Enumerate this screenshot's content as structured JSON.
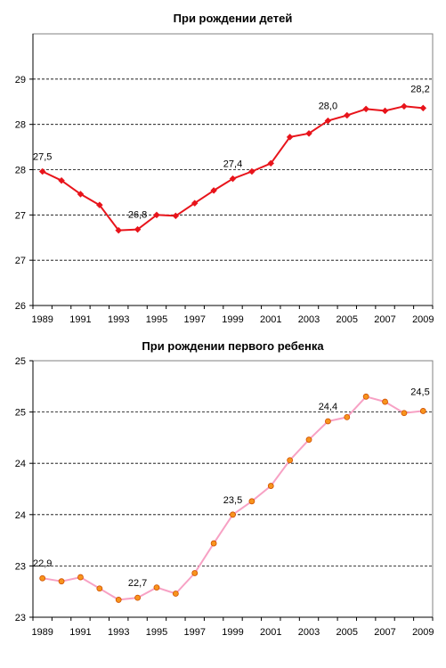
{
  "chart_data": [
    {
      "type": "line",
      "title": "При рождении детей",
      "x": [
        1989,
        1990,
        1991,
        1992,
        1993,
        1994,
        1995,
        1996,
        1997,
        1998,
        1999,
        2000,
        2001,
        2002,
        2003,
        2004,
        2005,
        2006,
        2007,
        2008,
        2009
      ],
      "series": [
        {
          "values": [
            27.48,
            27.38,
            27.23,
            27.11,
            26.83,
            26.84,
            27.0,
            26.99,
            27.13,
            27.27,
            27.4,
            27.48,
            27.57,
            27.86,
            27.9,
            28.04,
            28.1,
            28.17,
            28.15,
            28.2,
            28.18
          ]
        }
      ],
      "ylim": [
        26.0,
        29.0
      ],
      "y_ticks": [
        {
          "value": 26.0,
          "label": "26"
        },
        {
          "value": 26.5,
          "label": "27"
        },
        {
          "value": 27.0,
          "label": "27"
        },
        {
          "value": 27.5,
          "label": "28"
        },
        {
          "value": 28.0,
          "label": "28"
        },
        {
          "value": 28.5,
          "label": "29"
        }
      ],
      "x_tick_labels": [
        "1989",
        "1991",
        "1993",
        "1995",
        "1997",
        "1999",
        "2001",
        "2003",
        "2005",
        "2007",
        "2009"
      ],
      "data_labels": [
        {
          "year": 1989,
          "text": "27,5"
        },
        {
          "year": 1994,
          "text": "26,8"
        },
        {
          "year": 1999,
          "text": "27,4"
        },
        {
          "year": 2004,
          "text": "28,0"
        },
        {
          "year": 2009,
          "text": "28,2"
        }
      ],
      "line_color": "#e8141b",
      "marker": "diamond",
      "marker_color": "#e8141b",
      "grid": "horizontal dashed"
    },
    {
      "type": "line",
      "title": "При рождении первого ребенка",
      "x": [
        1989,
        1990,
        1991,
        1992,
        1993,
        1994,
        1995,
        1996,
        1997,
        1998,
        1999,
        2000,
        2001,
        2002,
        2003,
        2004,
        2005,
        2006,
        2007,
        2008,
        2009
      ],
      "series": [
        {
          "values": [
            22.88,
            22.85,
            22.89,
            22.78,
            22.67,
            22.69,
            22.79,
            22.73,
            22.93,
            23.22,
            23.5,
            23.63,
            23.78,
            24.03,
            24.23,
            24.41,
            24.45,
            24.65,
            24.6,
            24.49,
            24.51
          ]
        }
      ],
      "ylim": [
        22.5,
        25.0
      ],
      "y_ticks": [
        {
          "value": 22.5,
          "label": "23"
        },
        {
          "value": 23.0,
          "label": "23"
        },
        {
          "value": 23.5,
          "label": "24"
        },
        {
          "value": 24.0,
          "label": "24"
        },
        {
          "value": 24.5,
          "label": "25"
        },
        {
          "value": 25.0,
          "label": "25"
        }
      ],
      "x_tick_labels": [
        "1989",
        "1991",
        "1993",
        "1995",
        "1997",
        "1999",
        "2001",
        "2003",
        "2005",
        "2007",
        "2009"
      ],
      "data_labels": [
        {
          "year": 1989,
          "text": "22,9"
        },
        {
          "year": 1994,
          "text": "22,7"
        },
        {
          "year": 1999,
          "text": "23,5"
        },
        {
          "year": 2004,
          "text": "24,4"
        },
        {
          "year": 2009,
          "text": "24,5"
        }
      ],
      "line_color": "#f7a1c4",
      "marker": "circle",
      "marker_color": "#f7941d",
      "marker_edge": "#d14f00",
      "grid": "horizontal dashed"
    }
  ]
}
